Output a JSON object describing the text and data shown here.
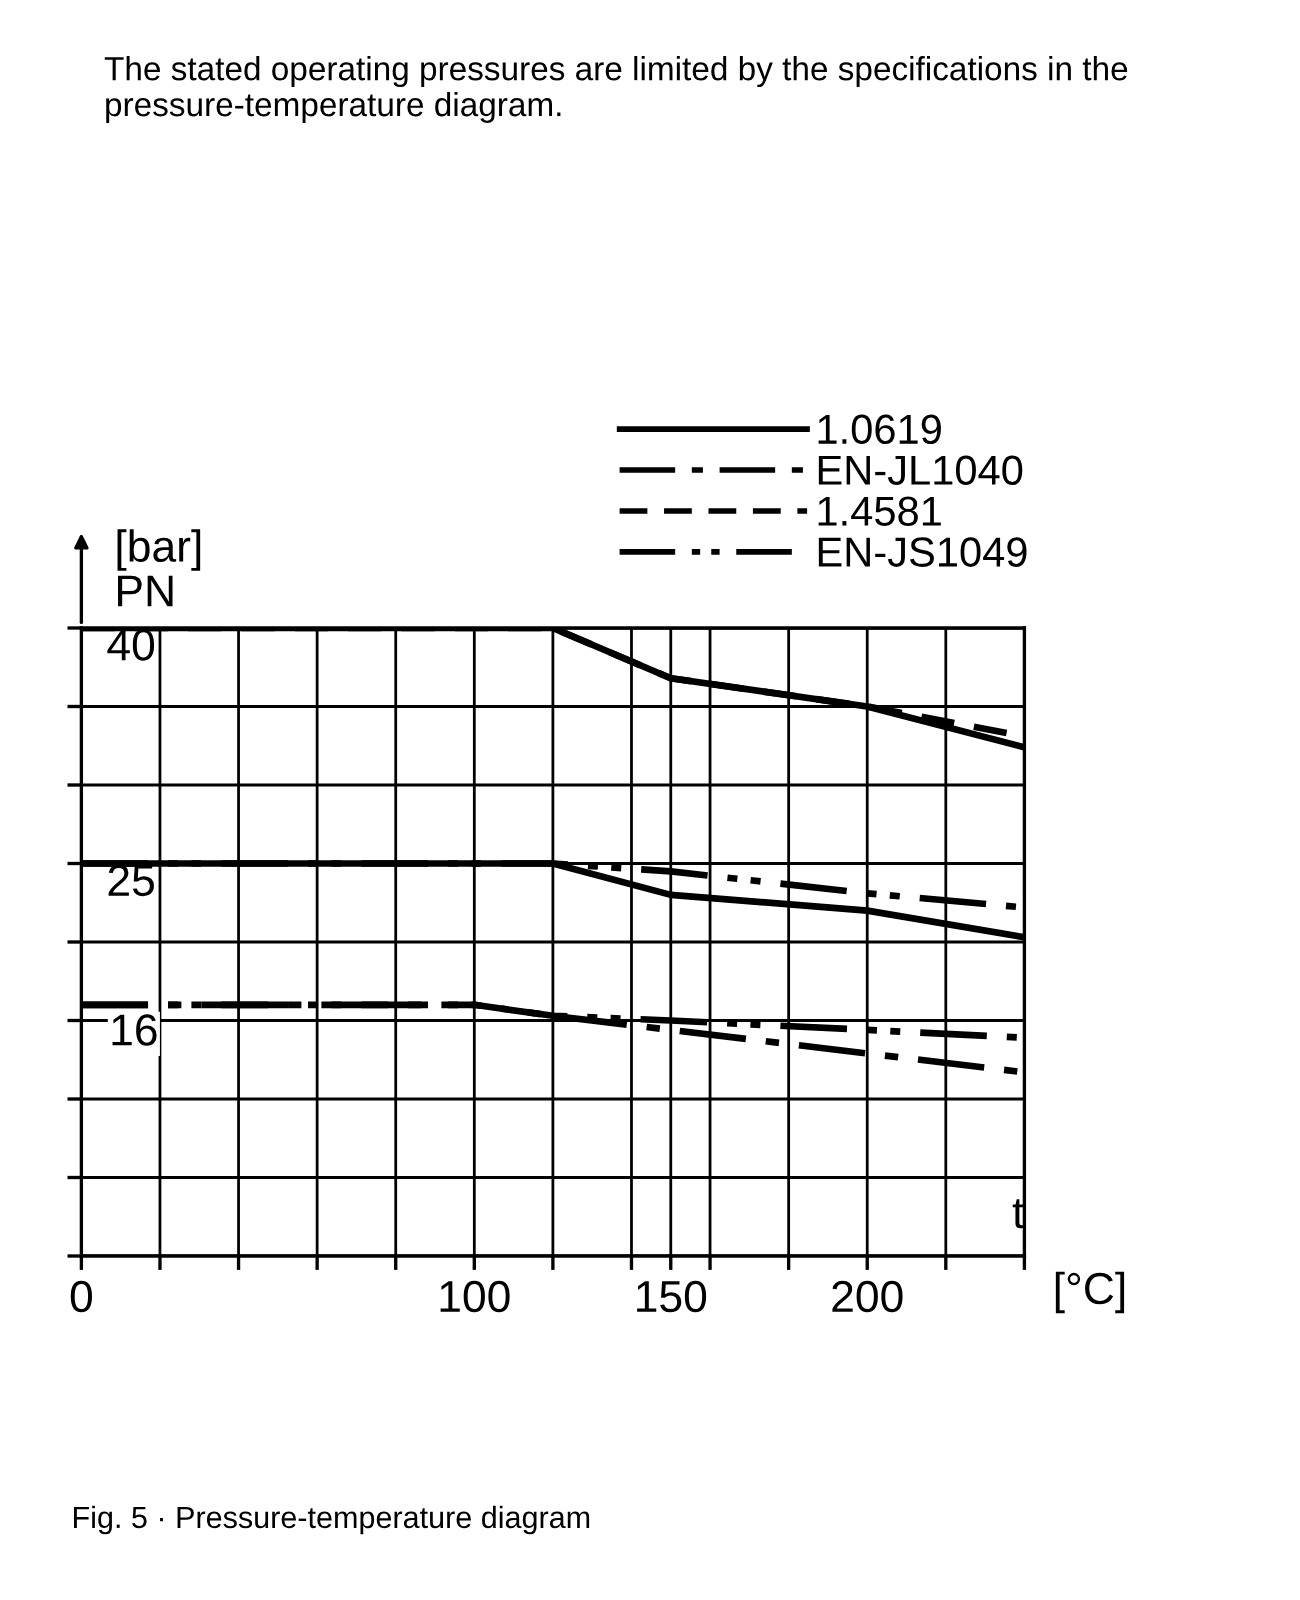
{
  "chart_data": {
    "type": "line",
    "subtitle": "The stated operating pressures are limited by the specifications in the pressure-temperature diagram.",
    "xlabel": "[°C]",
    "ylabel": "[bar]\nPN",
    "annotations": [
      "Fig. 5 · Pressure-temperature diagram",
      "t",
      {
        "text": "16",
        "x": 0,
        "y": 16
      }
    ],
    "xlim": [
      0,
      240
    ],
    "ylim": [
      0,
      40
    ],
    "xticks": [
      0,
      {
        "value": 20,
        "label": null
      },
      {
        "value": 40,
        "label": null
      },
      {
        "value": 60,
        "label": null
      },
      {
        "value": 80,
        "label": null
      },
      100,
      {
        "value": 120,
        "label": null
      },
      {
        "value": 140,
        "label": null
      },
      150,
      {
        "value": 160,
        "label": null
      },
      {
        "value": 180,
        "label": null
      },
      200,
      {
        "value": 220,
        "label": null
      },
      {
        "value": 240,
        "label": null
      }
    ],
    "yticks": [
      {
        "value": 0,
        "label": null
      },
      {
        "value": 5,
        "label": null
      },
      {
        "value": 10,
        "label": null
      },
      {
        "value": 15,
        "label": null
      },
      {
        "value": 20,
        "label": null
      },
      25,
      {
        "value": 30,
        "label": null
      },
      {
        "value": 35,
        "label": null
      },
      40
    ],
    "grid": true,
    "legend": "top right",
    "series": [
      {
        "name": "1.0619",
        "color": "#000000",
        "line_style": "solid",
        "x": [
          0,
          120,
          150,
          200,
          240
        ],
        "values": [
          40,
          40,
          36.8,
          35,
          32.4
        ]
      },
      {
        "name": "EN-JL1040",
        "color": "#000000",
        "line_style": "dashdot",
        "x": [
          0,
          100,
          120,
          150,
          200,
          240
        ],
        "values": [
          16,
          16,
          15.3,
          14.4,
          12.9,
          11.7
        ]
      },
      {
        "name": "1.4581",
        "color": "#000000",
        "line_style": "dashed",
        "x": [
          0,
          120,
          150,
          200,
          240
        ],
        "values": [
          40,
          40,
          36.8,
          35,
          33.1
        ]
      },
      {
        "name": "EN-JS1049",
        "color": "#000000",
        "line_style": "dashdotdot",
        "x": [
          0,
          120,
          150,
          200,
          240
        ],
        "values": [
          25,
          25,
          24.5,
          23.1,
          22.2
        ]
      },
      {
        "color": "#000000",
        "line_style": "solid",
        "x": [
          0,
          120,
          150,
          200,
          240
        ],
        "values": [
          25,
          25,
          23,
          22,
          20.3
        ]
      },
      {
        "color": "#000000",
        "line_style": "dashdotdot",
        "x": [
          0,
          100,
          120,
          150,
          200,
          240
        ],
        "values": [
          16,
          16,
          15.3,
          15.0,
          14.4,
          13.9
        ]
      }
    ]
  }
}
